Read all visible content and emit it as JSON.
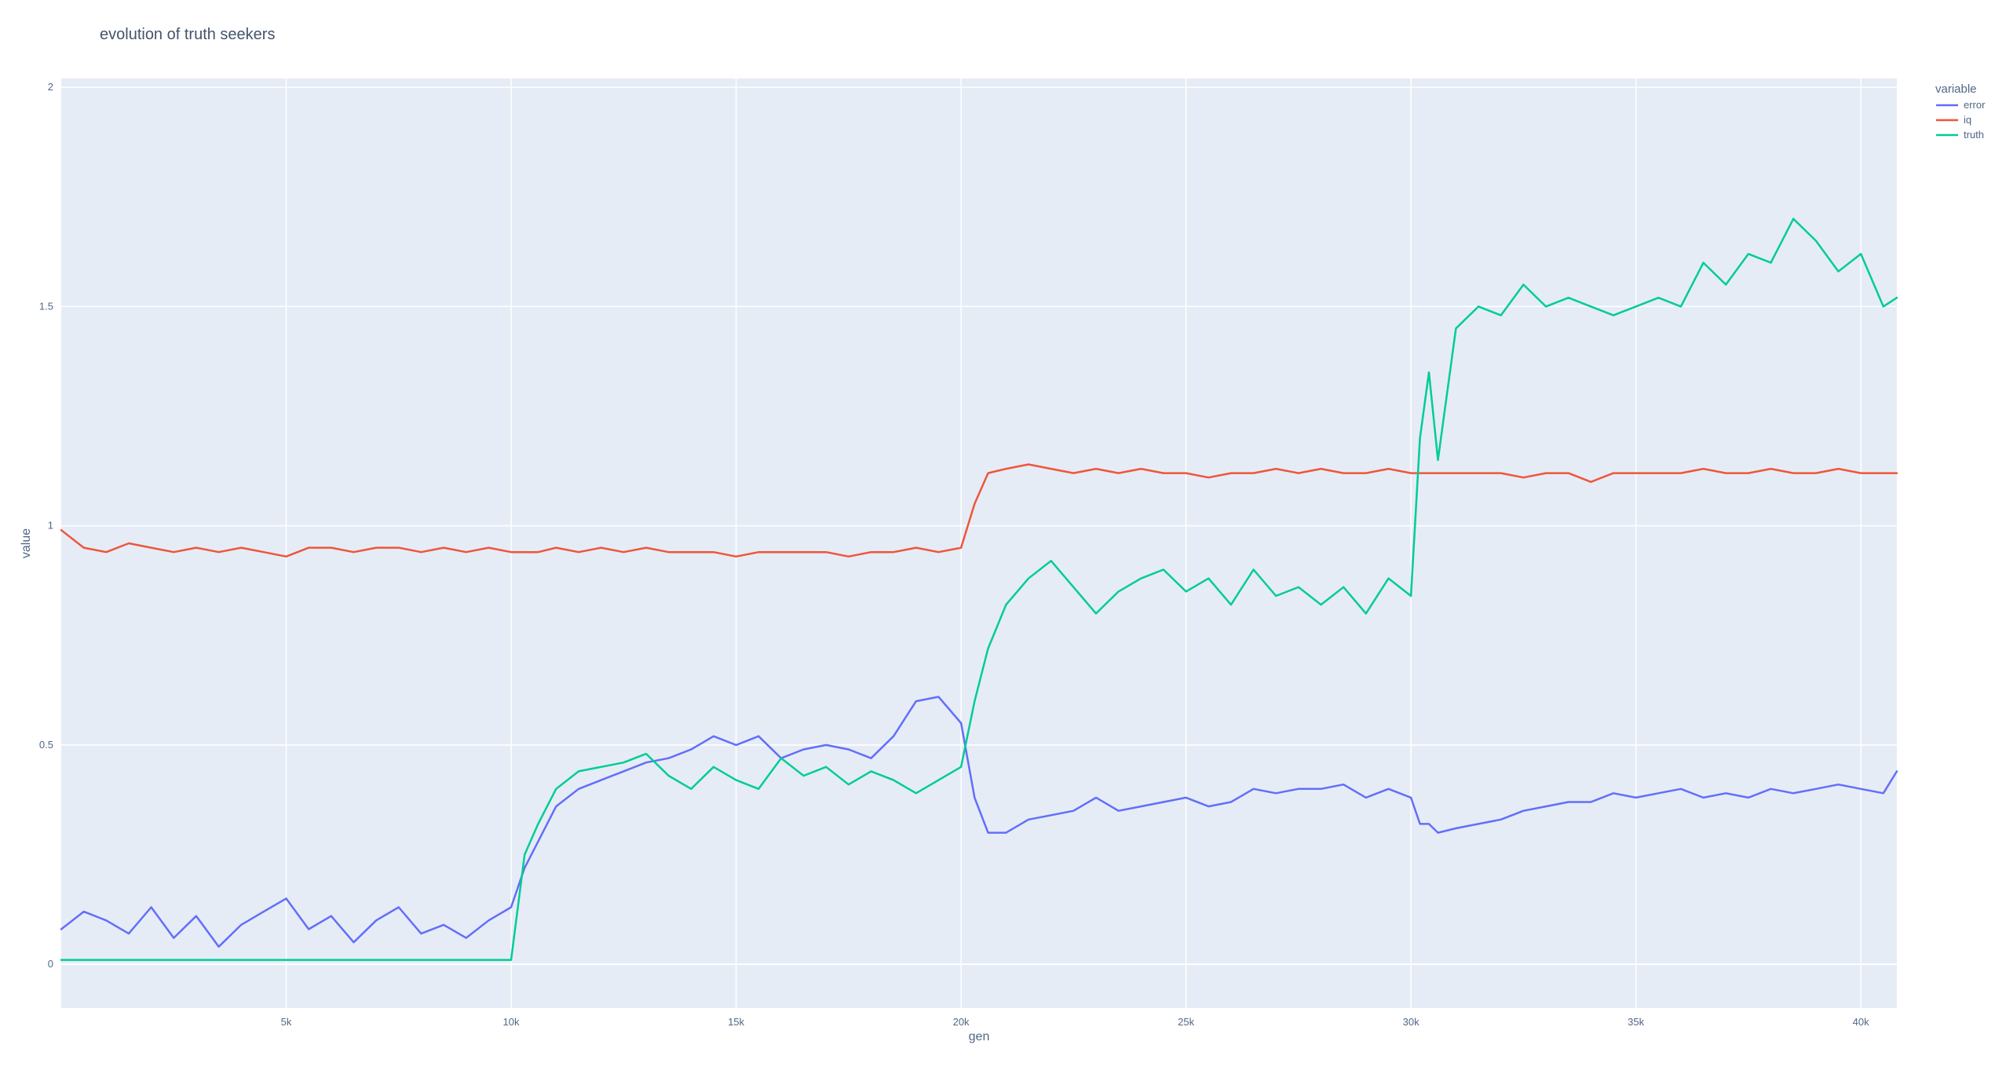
{
  "chart_data": {
    "type": "line",
    "title": "evolution of truth seekers",
    "xlabel": "gen",
    "ylabel": "value",
    "xlim": [
      0,
      40800
    ],
    "ylim": [
      -0.1,
      2.02
    ],
    "grid": true,
    "legend_title": "variable",
    "legend_position": "top-right",
    "x_ticks": [
      5000,
      10000,
      15000,
      20000,
      25000,
      30000,
      35000,
      40000
    ],
    "x_tick_labels": [
      "5k",
      "10k",
      "15k",
      "20k",
      "25k",
      "30k",
      "35k",
      "40k"
    ],
    "y_ticks": [
      0,
      0.5,
      1,
      1.5,
      2
    ],
    "y_tick_labels": [
      "0",
      "0.5",
      "1",
      "1.5",
      "2"
    ],
    "x": [
      0,
      500,
      1000,
      1500,
      2000,
      2500,
      3000,
      3500,
      4000,
      4500,
      5000,
      5500,
      6000,
      6500,
      7000,
      7500,
      8000,
      8500,
      9000,
      9500,
      10000,
      10300,
      10600,
      11000,
      11500,
      12000,
      12500,
      13000,
      13500,
      14000,
      14500,
      15000,
      15500,
      16000,
      16500,
      17000,
      17500,
      18000,
      18500,
      19000,
      19500,
      20000,
      20300,
      20600,
      21000,
      21500,
      22000,
      22500,
      23000,
      23500,
      24000,
      24500,
      25000,
      25500,
      26000,
      26500,
      27000,
      27500,
      28000,
      28500,
      29000,
      29500,
      30000,
      30200,
      30400,
      30600,
      31000,
      31500,
      32000,
      32500,
      33000,
      33500,
      34000,
      34500,
      35000,
      35500,
      36000,
      36500,
      37000,
      37500,
      38000,
      38500,
      39000,
      39500,
      40000,
      40500,
      40800
    ],
    "series": [
      {
        "name": "error",
        "color": "#636efa",
        "values": [
          0.08,
          0.12,
          0.1,
          0.07,
          0.13,
          0.06,
          0.11,
          0.04,
          0.09,
          0.12,
          0.15,
          0.08,
          0.11,
          0.05,
          0.1,
          0.13,
          0.07,
          0.09,
          0.06,
          0.1,
          0.13,
          0.22,
          0.28,
          0.36,
          0.4,
          0.42,
          0.44,
          0.46,
          0.47,
          0.49,
          0.52,
          0.5,
          0.52,
          0.47,
          0.49,
          0.5,
          0.49,
          0.47,
          0.52,
          0.6,
          0.61,
          0.55,
          0.38,
          0.3,
          0.3,
          0.33,
          0.34,
          0.35,
          0.38,
          0.35,
          0.36,
          0.37,
          0.38,
          0.36,
          0.37,
          0.4,
          0.39,
          0.4,
          0.4,
          0.41,
          0.38,
          0.4,
          0.38,
          0.32,
          0.32,
          0.3,
          0.31,
          0.32,
          0.33,
          0.35,
          0.36,
          0.37,
          0.37,
          0.39,
          0.38,
          0.39,
          0.4,
          0.38,
          0.39,
          0.38,
          0.4,
          0.39,
          0.4,
          0.41,
          0.4,
          0.39,
          0.44
        ]
      },
      {
        "name": "iq",
        "color": "#ef553b",
        "values": [
          0.99,
          0.95,
          0.94,
          0.96,
          0.95,
          0.94,
          0.95,
          0.94,
          0.95,
          0.94,
          0.93,
          0.95,
          0.95,
          0.94,
          0.95,
          0.95,
          0.94,
          0.95,
          0.94,
          0.95,
          0.94,
          0.94,
          0.94,
          0.95,
          0.94,
          0.95,
          0.94,
          0.95,
          0.94,
          0.94,
          0.94,
          0.93,
          0.94,
          0.94,
          0.94,
          0.94,
          0.93,
          0.94,
          0.94,
          0.95,
          0.94,
          0.95,
          1.05,
          1.12,
          1.13,
          1.14,
          1.13,
          1.12,
          1.13,
          1.12,
          1.13,
          1.12,
          1.12,
          1.11,
          1.12,
          1.12,
          1.13,
          1.12,
          1.13,
          1.12,
          1.12,
          1.13,
          1.12,
          1.12,
          1.12,
          1.12,
          1.12,
          1.12,
          1.12,
          1.11,
          1.12,
          1.12,
          1.1,
          1.12,
          1.12,
          1.12,
          1.12,
          1.13,
          1.12,
          1.12,
          1.13,
          1.12,
          1.12,
          1.13,
          1.12,
          1.12,
          1.12
        ]
      },
      {
        "name": "truth",
        "color": "#00cc96",
        "values": [
          0.01,
          0.01,
          0.01,
          0.01,
          0.01,
          0.01,
          0.01,
          0.01,
          0.01,
          0.01,
          0.01,
          0.01,
          0.01,
          0.01,
          0.01,
          0.01,
          0.01,
          0.01,
          0.01,
          0.01,
          0.01,
          0.25,
          0.32,
          0.4,
          0.44,
          0.45,
          0.46,
          0.48,
          0.43,
          0.4,
          0.45,
          0.42,
          0.4,
          0.47,
          0.43,
          0.45,
          0.41,
          0.44,
          0.42,
          0.39,
          0.42,
          0.45,
          0.6,
          0.72,
          0.82,
          0.88,
          0.92,
          0.86,
          0.8,
          0.85,
          0.88,
          0.9,
          0.85,
          0.88,
          0.82,
          0.9,
          0.84,
          0.86,
          0.82,
          0.86,
          0.8,
          0.88,
          0.84,
          1.2,
          1.35,
          1.15,
          1.45,
          1.5,
          1.48,
          1.55,
          1.5,
          1.52,
          1.5,
          1.48,
          1.5,
          1.52,
          1.5,
          1.6,
          1.55,
          1.62,
          1.6,
          1.7,
          1.65,
          1.58,
          1.62,
          1.5,
          1.52
        ]
      }
    ]
  }
}
